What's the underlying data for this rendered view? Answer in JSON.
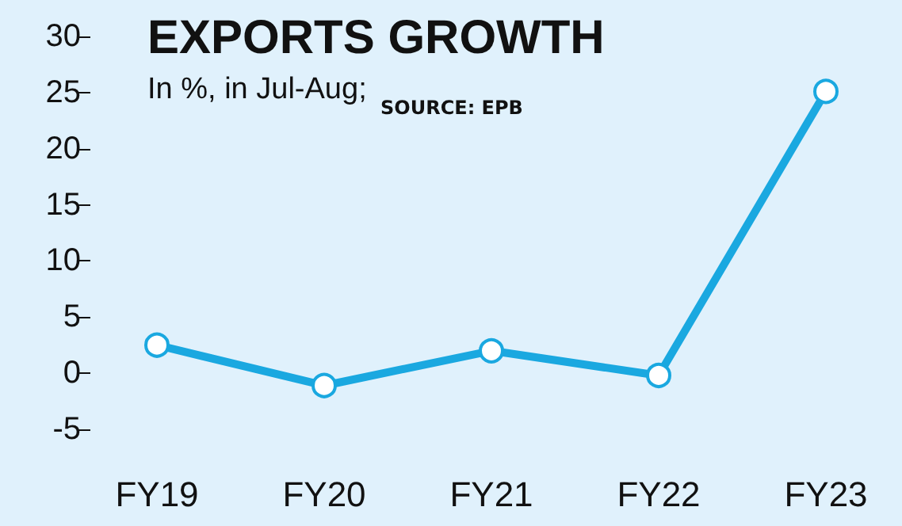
{
  "chart_data": {
    "type": "line",
    "title": "EXPORTS GROWTH",
    "subtitle": "In %, in Jul-Aug;",
    "annotations": [
      "SOURCE: EPB"
    ],
    "categories": [
      "FY19",
      "FY20",
      "FY21",
      "FY22",
      "FY23"
    ],
    "series": [
      {
        "color": "#1aa8e0",
        "values": [
          2.5,
          -1.1,
          2.0,
          -0.2,
          25.1
        ]
      }
    ],
    "ylim": [
      -5,
      30
    ],
    "yticks": [
      -5,
      0,
      5,
      10,
      15,
      20,
      25,
      30
    ],
    "grid": false,
    "marker": "circle",
    "line_style": "solid"
  }
}
